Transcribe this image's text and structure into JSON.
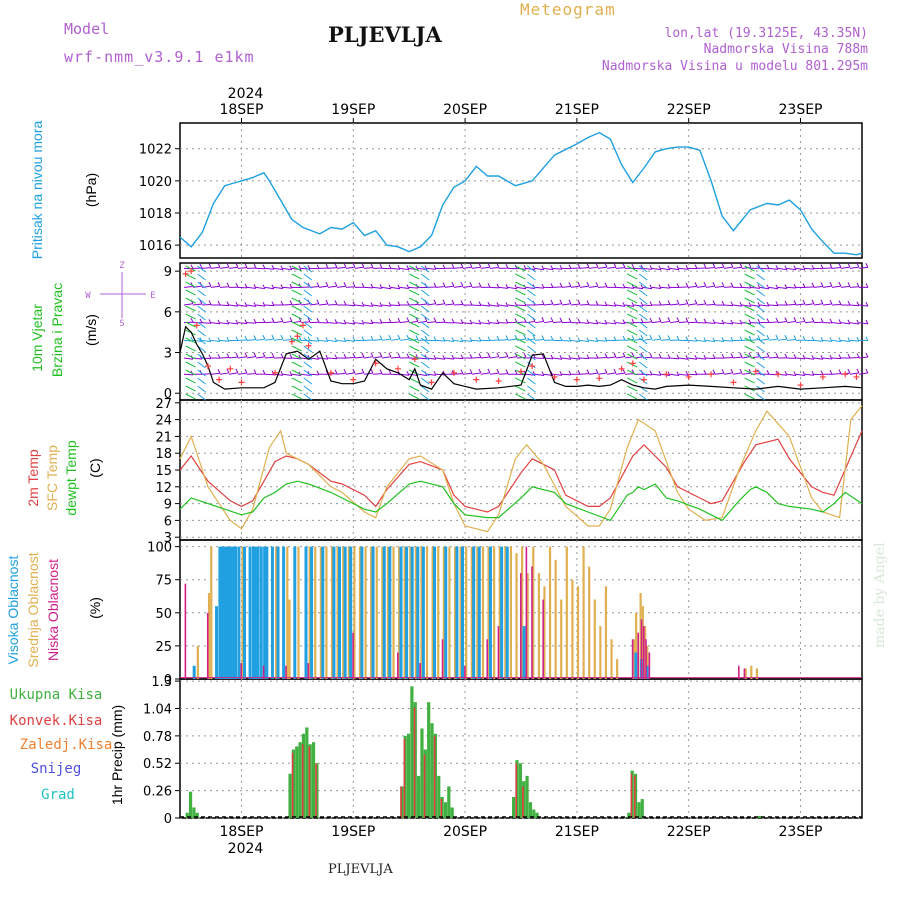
{
  "header": {
    "model_label": "Model",
    "model_name": "wrf-nmm_v3.9.1 e1km",
    "station": "PLJEVLJA",
    "meteogram_label": "Meteogram",
    "lonlat": "lon,lat (19.3125E, 43.35N)",
    "altitude": "Nadmorska Visina 788m",
    "altitude_model": "Nadmorska Visina u modelu 801.295m"
  },
  "footer": {
    "station": "PLJEVLJA",
    "credit": "made by Angel"
  },
  "colors": {
    "pressure": "#1ea0e0",
    "wind_speed": "#000000",
    "wind_gust": "#ff4040",
    "t2m": "#e04040",
    "tsfc": "#e0b050",
    "dewpoint": "#20c020",
    "high_cloud": "#20a0e0",
    "mid_cloud": "#e0b050",
    "low_cloud": "#d0208a",
    "total_precip": "#40b040",
    "conv_precip": "#e04040",
    "freezing_precip": "#f08030",
    "snow": "#5050e0",
    "hail": "#20c0c0",
    "purple_text": "#b060d0"
  },
  "time_axis": {
    "year": "2024",
    "days": [
      "18SEP",
      "19SEP",
      "20SEP",
      "21SEP",
      "22SEP",
      "23SEP"
    ],
    "start_day_offset": -0.55,
    "end_day_offset": 5.55
  },
  "panel_labels": {
    "pressure": [
      "Pritisak na nivou mora",
      "(hPa)"
    ],
    "wind": [
      "10m Vjetar",
      "Brzina i Pravac",
      "(m/s)"
    ],
    "wind_compass": [
      "Z",
      "E",
      "W",
      "S"
    ],
    "temp": [
      "2m Temp",
      "SFC Temp",
      "dewpt Temp",
      "(C)"
    ],
    "cloud": [
      "Visoka Oblacnost",
      "Srednja Oblacnost",
      "Niska Oblacnost",
      "(%)"
    ],
    "precip": [
      "Ukupna Kisa",
      "Konvek.Kisa",
      "Zaledj.Kisa",
      "Snijeg",
      "Grad",
      "1hr Precip (mm)"
    ]
  },
  "chart_data": [
    {
      "type": "line",
      "name": "pressure",
      "ylabel": "(hPa)",
      "ylim": [
        1015.2,
        1023.6
      ],
      "yticks": [
        1016,
        1018,
        1020,
        1022
      ],
      "x_days": [
        -0.55,
        -0.45,
        -0.35,
        -0.25,
        -0.15,
        -0.05,
        0.0,
        0.1,
        0.2,
        0.25,
        0.35,
        0.45,
        0.55,
        0.7,
        0.8,
        0.9,
        1.0,
        1.1,
        1.2,
        1.3,
        1.4,
        1.5,
        1.6,
        1.7,
        1.8,
        1.9,
        2.0,
        2.1,
        2.2,
        2.3,
        2.45,
        2.6,
        2.8,
        3.0,
        3.1,
        3.2,
        3.3,
        3.4,
        3.5,
        3.6,
        3.7,
        3.8,
        3.9,
        4.0,
        4.1,
        4.2,
        4.3,
        4.4,
        4.55,
        4.7,
        4.8,
        4.9,
        5.0,
        5.1,
        5.2,
        5.3,
        5.4,
        5.5,
        5.55
      ],
      "values": [
        1016.5,
        1015.9,
        1016.8,
        1018.6,
        1019.7,
        1019.9,
        1020.0,
        1020.2,
        1020.5,
        1020.0,
        1018.8,
        1017.6,
        1017.1,
        1016.7,
        1017.1,
        1017.0,
        1017.4,
        1016.6,
        1016.9,
        1016.0,
        1015.9,
        1015.6,
        1015.9,
        1016.6,
        1018.5,
        1019.6,
        1020.0,
        1020.9,
        1020.3,
        1020.3,
        1019.7,
        1020.0,
        1021.6,
        1022.3,
        1022.7,
        1023.0,
        1022.6,
        1021.0,
        1019.9,
        1020.8,
        1021.8,
        1022.0,
        1022.1,
        1022.1,
        1021.9,
        1020.0,
        1017.8,
        1016.9,
        1018.2,
        1018.6,
        1018.5,
        1018.8,
        1018.2,
        1017.0,
        1016.2,
        1015.5,
        1015.5,
        1015.4,
        1015.5
      ]
    },
    {
      "type": "line",
      "name": "wind",
      "ylabel": "(m/s)",
      "ylim": [
        -0.5,
        9.6
      ],
      "yticks": [
        0,
        3,
        6,
        9
      ],
      "wind_speed": {
        "x_days": [
          -0.55,
          -0.5,
          -0.45,
          -0.4,
          -0.35,
          -0.3,
          -0.25,
          -0.15,
          0.0,
          0.2,
          0.3,
          0.4,
          0.5,
          0.6,
          0.7,
          0.8,
          0.9,
          1.0,
          1.1,
          1.2,
          1.3,
          1.4,
          1.5,
          1.55,
          1.6,
          1.7,
          1.8,
          1.9,
          2.0,
          2.1,
          2.3,
          2.5,
          2.6,
          2.7,
          2.8,
          2.9,
          3.0,
          3.1,
          3.2,
          3.3,
          3.4,
          3.5,
          3.6,
          3.7,
          3.8,
          4.0,
          4.2,
          4.4,
          4.6,
          4.8,
          5.0,
          5.2,
          5.4,
          5.55
        ],
        "values": [
          3.0,
          4.9,
          4.5,
          3.6,
          2.9,
          2.0,
          0.8,
          0.3,
          0.4,
          0.4,
          0.8,
          2.9,
          3.1,
          2.5,
          3.1,
          0.9,
          0.7,
          0.7,
          0.9,
          2.5,
          1.8,
          1.5,
          1.0,
          1.8,
          0.6,
          0.3,
          1.5,
          0.7,
          0.5,
          0.3,
          0.4,
          0.6,
          2.8,
          2.9,
          0.8,
          0.5,
          0.5,
          0.6,
          0.5,
          0.6,
          1.0,
          0.6,
          0.4,
          0.3,
          0.5,
          0.6,
          0.5,
          0.4,
          0.3,
          0.5,
          0.3,
          0.4,
          0.5,
          0.4
        ]
      },
      "wind_gust": {
        "x_days": [
          -0.5,
          -0.45,
          -0.4,
          -0.3,
          -0.2,
          -0.1,
          0.0,
          0.3,
          0.45,
          0.5,
          0.55,
          0.6,
          0.8,
          1.0,
          1.2,
          1.4,
          1.55,
          1.7,
          1.9,
          2.1,
          2.3,
          2.5,
          2.6,
          2.8,
          3.0,
          3.2,
          3.4,
          3.5,
          3.6,
          3.8,
          4.0,
          4.2,
          4.4,
          4.6,
          4.8,
          5.0,
          5.2,
          5.4,
          5.5
        ],
        "values": [
          8.8,
          9.0,
          5.0,
          2.0,
          1.0,
          1.8,
          0.8,
          1.5,
          3.8,
          4.2,
          5.0,
          3.5,
          1.5,
          1.0,
          2.2,
          1.8,
          2.5,
          0.8,
          1.5,
          1.0,
          0.9,
          1.6,
          2.0,
          1.2,
          1.0,
          1.1,
          1.8,
          2.2,
          1.0,
          1.4,
          1.2,
          1.4,
          0.8,
          1.6,
          1.4,
          0.6,
          1.2,
          1.4,
          1.2
        ]
      }
    },
    {
      "type": "line",
      "name": "temperature",
      "ylabel": "(C)",
      "ylim": [
        2.5,
        27.5
      ],
      "yticks": [
        3,
        6,
        9,
        12,
        15,
        18,
        21,
        24,
        27
      ],
      "series": [
        {
          "name": "2m Temp",
          "x_days": [
            -0.55,
            -0.45,
            -0.3,
            -0.1,
            0.0,
            0.1,
            0.2,
            0.3,
            0.4,
            0.5,
            0.6,
            0.8,
            0.9,
            1.1,
            1.2,
            1.3,
            1.5,
            1.6,
            1.8,
            1.9,
            2.0,
            2.1,
            2.2,
            2.3,
            2.5,
            2.6,
            2.8,
            2.9,
            3.1,
            3.2,
            3.3,
            3.5,
            3.6,
            3.8,
            3.9,
            4.1,
            4.2,
            4.3,
            4.5,
            4.6,
            4.8,
            4.9,
            5.1,
            5.2,
            5.3,
            5.55
          ],
          "values": [
            15.0,
            17.5,
            13.0,
            9.5,
            8.5,
            9.5,
            13.0,
            16.5,
            17.5,
            17.0,
            16.0,
            13.0,
            12.5,
            10.5,
            8.5,
            11.5,
            16.0,
            16.5,
            15.0,
            10.5,
            8.5,
            8.0,
            7.5,
            8.5,
            14.5,
            17.0,
            15.0,
            10.5,
            8.5,
            8.5,
            10.0,
            17.5,
            19.5,
            15.5,
            12.0,
            10.0,
            9.0,
            9.5,
            16.5,
            19.5,
            20.5,
            17.0,
            12.0,
            11.0,
            10.5,
            22.0
          ]
        },
        {
          "name": "SFC Temp",
          "x_days": [
            -0.55,
            -0.45,
            -0.3,
            -0.1,
            0.0,
            0.1,
            0.25,
            0.35,
            0.4,
            0.5,
            0.6,
            0.8,
            0.9,
            1.1,
            1.2,
            1.3,
            1.5,
            1.6,
            1.8,
            1.9,
            2.0,
            2.1,
            2.2,
            2.3,
            2.45,
            2.55,
            2.7,
            2.9,
            3.1,
            3.2,
            3.3,
            3.45,
            3.55,
            3.7,
            3.9,
            4.0,
            4.15,
            4.3,
            4.45,
            4.6,
            4.7,
            4.9,
            5.1,
            5.2,
            5.35,
            5.45,
            5.55
          ],
          "values": [
            17.0,
            21.0,
            12.0,
            6.0,
            4.5,
            8.0,
            19.0,
            22.0,
            18.0,
            17.0,
            16.0,
            12.0,
            11.0,
            7.5,
            6.5,
            12.0,
            17.0,
            17.5,
            15.0,
            9.0,
            5.0,
            4.5,
            4.0,
            7.0,
            17.0,
            19.5,
            16.0,
            8.5,
            5.0,
            5.0,
            8.0,
            19.0,
            24.0,
            22.0,
            11.0,
            8.0,
            6.0,
            6.5,
            15.0,
            22.0,
            25.5,
            21.0,
            10.0,
            7.5,
            6.5,
            24.0,
            26.5
          ]
        },
        {
          "name": "dewpt Temp",
          "x_days": [
            -0.55,
            -0.45,
            -0.3,
            -0.15,
            0.0,
            0.1,
            0.2,
            0.3,
            0.4,
            0.5,
            0.6,
            0.8,
            0.9,
            1.1,
            1.2,
            1.3,
            1.5,
            1.6,
            1.8,
            1.9,
            2.0,
            2.2,
            2.3,
            2.5,
            2.6,
            2.8,
            2.9,
            3.1,
            3.3,
            3.45,
            3.5,
            3.55,
            3.6,
            3.7,
            3.8,
            3.9,
            4.1,
            4.2,
            4.3,
            4.45,
            4.55,
            4.6,
            4.7,
            4.8,
            4.9,
            5.1,
            5.2,
            5.3,
            5.4,
            5.55
          ],
          "values": [
            8.0,
            10.0,
            9.0,
            8.0,
            7.0,
            7.5,
            10.0,
            11.0,
            12.5,
            13.0,
            12.5,
            11.0,
            10.0,
            8.0,
            7.5,
            9.0,
            12.5,
            13.0,
            12.0,
            9.0,
            7.0,
            6.5,
            6.5,
            10.0,
            12.0,
            11.0,
            9.0,
            7.5,
            6.0,
            10.5,
            11.0,
            12.0,
            11.5,
            12.5,
            10.0,
            9.5,
            8.0,
            7.0,
            6.0,
            9.5,
            11.5,
            12.0,
            11.0,
            9.0,
            8.5,
            8.0,
            7.5,
            9.0,
            11.0,
            9.0
          ]
        }
      ]
    },
    {
      "type": "bar",
      "name": "cloud_cover",
      "ylabel": "(%)",
      "ylim": [
        0,
        105
      ],
      "yticks": [
        0,
        25,
        50,
        75,
        100
      ],
      "high": {
        "x_days": [
          -0.45,
          -0.25,
          -0.22,
          -0.2,
          -0.18,
          -0.16,
          -0.14,
          -0.12,
          -0.1,
          -0.08,
          -0.05,
          0.0,
          0.05,
          0.08,
          0.1,
          0.12,
          0.15,
          0.18,
          0.2,
          0.25,
          0.3,
          0.35,
          0.45,
          0.55,
          0.6,
          0.7,
          0.8,
          0.85,
          0.9,
          0.95,
          1.05,
          1.15,
          1.25,
          1.3,
          1.4,
          1.45,
          1.5,
          1.55,
          1.6,
          1.7,
          1.8,
          1.9,
          1.95,
          2.05,
          2.1,
          2.2,
          2.3,
          2.35,
          2.5,
          3.5,
          3.55,
          3.6
        ],
        "values": [
          10,
          55,
          100,
          100,
          100,
          100,
          100,
          100,
          100,
          100,
          100,
          100,
          100,
          100,
          100,
          100,
          100,
          100,
          100,
          100,
          100,
          100,
          100,
          100,
          100,
          100,
          100,
          100,
          100,
          100,
          100,
          100,
          100,
          100,
          100,
          100,
          100,
          100,
          100,
          100,
          100,
          100,
          100,
          100,
          100,
          100,
          100,
          100,
          40,
          20,
          15,
          10
        ]
      },
      "mid": {
        "x_days": [
          -0.4,
          -0.3,
          -0.28,
          -0.1,
          0.0,
          0.1,
          0.2,
          0.3,
          0.4,
          0.42,
          0.5,
          0.6,
          0.65,
          0.7,
          0.75,
          0.8,
          0.85,
          0.9,
          0.95,
          1.0,
          1.05,
          1.1,
          1.15,
          1.2,
          1.25,
          1.3,
          1.35,
          1.4,
          1.45,
          1.5,
          1.55,
          1.6,
          1.65,
          1.7,
          1.75,
          1.8,
          1.85,
          1.9,
          1.95,
          2.0,
          2.05,
          2.1,
          2.15,
          2.2,
          2.25,
          2.3,
          2.35,
          2.4,
          2.45,
          2.5,
          2.55,
          2.6,
          2.65,
          2.7,
          2.75,
          2.8,
          2.85,
          2.9,
          2.95,
          3.0,
          3.05,
          3.1,
          3.15,
          3.2,
          3.25,
          3.3,
          3.35,
          3.5,
          3.52,
          3.56,
          3.58,
          3.6,
          3.62,
          4.5,
          4.55,
          4.6
        ],
        "values": [
          25,
          65,
          100,
          100,
          100,
          100,
          100,
          100,
          100,
          60,
          100,
          100,
          100,
          100,
          100,
          100,
          100,
          100,
          100,
          100,
          100,
          100,
          100,
          100,
          100,
          100,
          100,
          100,
          100,
          100,
          100,
          100,
          100,
          100,
          100,
          100,
          100,
          100,
          100,
          100,
          100,
          100,
          100,
          100,
          100,
          100,
          100,
          100,
          95,
          100,
          80,
          100,
          80,
          70,
          100,
          90,
          60,
          100,
          75,
          70,
          100,
          85,
          60,
          40,
          70,
          30,
          15,
          30,
          50,
          65,
          55,
          40,
          25,
          8,
          10,
          8
        ]
      },
      "low": {
        "x_days": [
          -0.5,
          -0.3,
          0.0,
          0.2,
          0.4,
          0.6,
          1.0,
          1.4,
          1.6,
          1.8,
          2.0,
          2.2,
          2.3,
          2.5,
          2.55,
          2.6,
          2.7,
          3.5,
          3.55,
          3.58,
          3.6,
          3.62,
          3.65,
          4.45,
          4.5
        ],
        "values": [
          72,
          50,
          12,
          10,
          10,
          12,
          35,
          20,
          12,
          30,
          10,
          30,
          40,
          80,
          100,
          85,
          60,
          30,
          35,
          45,
          40,
          30,
          20,
          10,
          8
        ]
      },
      "total_low_strip": 1
    },
    {
      "type": "bar",
      "name": "precipitation",
      "ylabel": "1hr Precip (mm)",
      "ylim": [
        0,
        1.32
      ],
      "yticks": [
        0,
        0.26,
        0.52,
        0.78,
        1.04,
        1.3
      ],
      "total": {
        "x_days": [
          -0.5,
          -0.47,
          -0.44,
          -0.41,
          0.42,
          0.45,
          0.48,
          0.51,
          0.54,
          0.57,
          0.6,
          0.63,
          0.66,
          0.69,
          1.42,
          1.45,
          1.48,
          1.51,
          1.54,
          1.57,
          1.6,
          1.63,
          1.66,
          1.69,
          1.72,
          1.75,
          1.78,
          1.81,
          1.84,
          1.87,
          2.42,
          2.45,
          2.48,
          2.51,
          2.54,
          2.57,
          2.6,
          2.63,
          3.45,
          3.48,
          3.51,
          3.54,
          3.57,
          4.62
        ],
        "values": [
          0.05,
          0.25,
          0.1,
          0.05,
          0.42,
          0.65,
          0.68,
          0.72,
          0.8,
          0.86,
          0.7,
          0.72,
          0.52,
          0.0,
          0.3,
          0.78,
          0.8,
          1.25,
          1.1,
          0.4,
          0.85,
          0.65,
          1.1,
          0.9,
          0.8,
          0.4,
          0.2,
          0.15,
          0.3,
          0.1,
          0.2,
          0.55,
          0.52,
          0.35,
          0.4,
          0.15,
          0.08,
          0.05,
          0.05,
          0.45,
          0.42,
          0.15,
          0.18,
          0.02
        ]
      },
      "convective": {
        "x_days": [
          0.45,
          0.54,
          0.6,
          0.66,
          1.42,
          1.45,
          1.54,
          1.63,
          1.72,
          1.78,
          2.45,
          2.51,
          3.48,
          3.51
        ],
        "values": [
          0.62,
          0.7,
          0.68,
          0.52,
          0.3,
          0.75,
          1.05,
          0.6,
          0.78,
          0.18,
          0.52,
          0.3,
          0.42,
          0.4
        ]
      }
    }
  ]
}
